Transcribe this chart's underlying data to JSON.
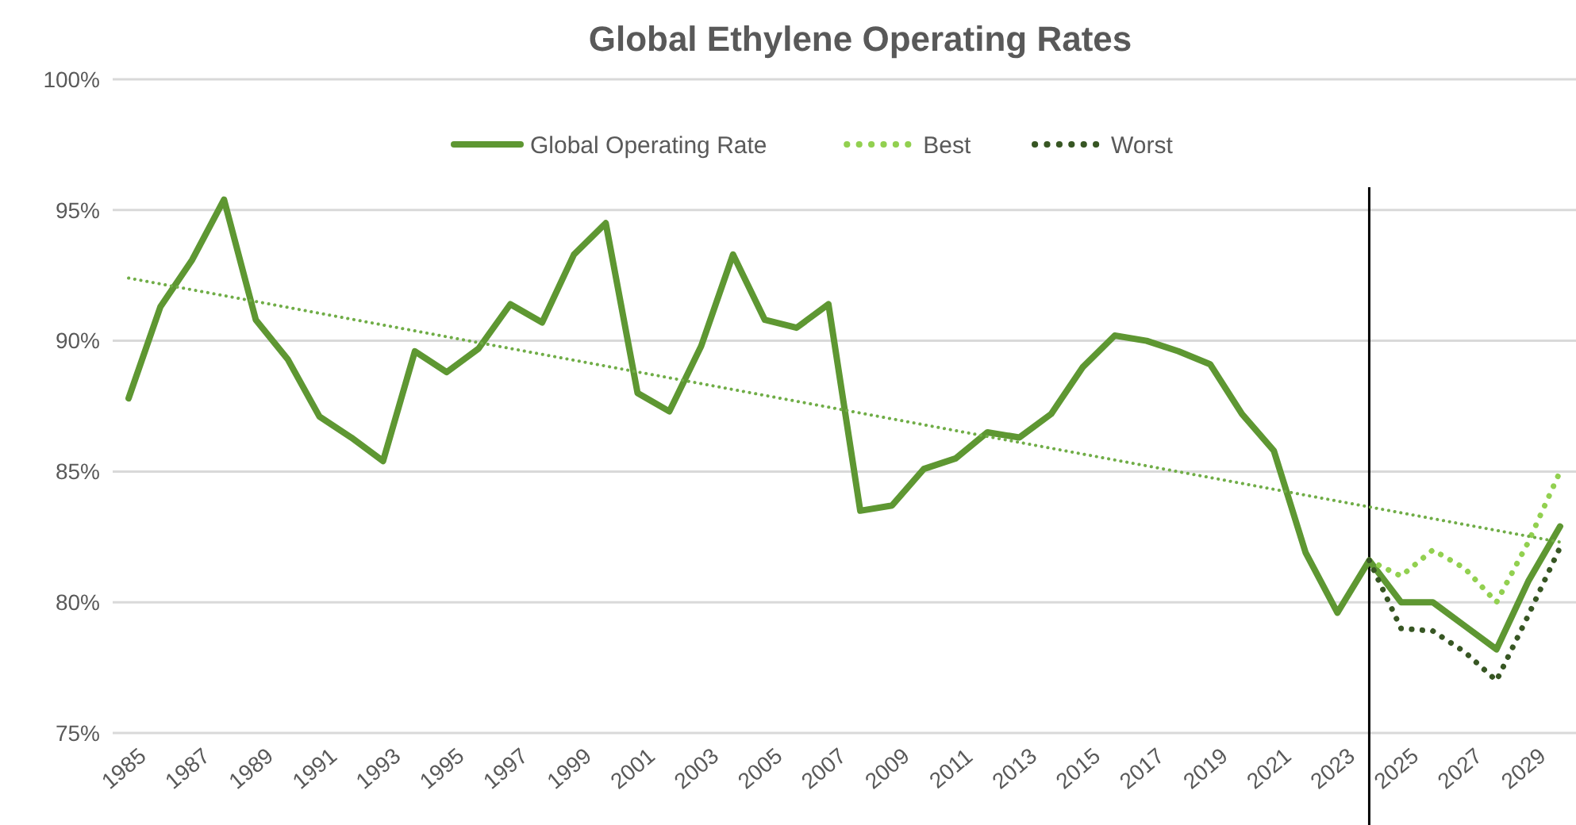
{
  "chart_data": {
    "type": "line",
    "title": "Global Ethylene Operating Rates",
    "x": [
      1985,
      1986,
      1987,
      1988,
      1989,
      1990,
      1991,
      1992,
      1993,
      1994,
      1995,
      1996,
      1997,
      1998,
      1999,
      2000,
      2001,
      2002,
      2003,
      2004,
      2005,
      2006,
      2007,
      2008,
      2009,
      2010,
      2011,
      2012,
      2013,
      2014,
      2015,
      2016,
      2017,
      2018,
      2019,
      2020,
      2021,
      2022,
      2023,
      2024,
      2025,
      2026,
      2027,
      2028,
      2029,
      2030
    ],
    "xlim": [
      1984.5,
      2030.5
    ],
    "xticks": [
      1985,
      1987,
      1989,
      1991,
      1993,
      1995,
      1997,
      1999,
      2001,
      2003,
      2005,
      2007,
      2009,
      2011,
      2013,
      2015,
      2017,
      2019,
      2021,
      2023,
      2025,
      2027,
      2029
    ],
    "ylim": [
      75,
      100
    ],
    "yticks": [
      {
        "value": 75,
        "label": "75%"
      },
      {
        "value": 80,
        "label": "80%"
      },
      {
        "value": 85,
        "label": "85%"
      },
      {
        "value": 90,
        "label": "90%"
      },
      {
        "value": 95,
        "label": "95%"
      },
      {
        "value": 100,
        "label": "100%"
      }
    ],
    "grid": "y",
    "legend": "top",
    "series": [
      {
        "name": "Global Operating Rate",
        "color": "#5e9732",
        "line_style": "solid",
        "values": [
          87.8,
          91.3,
          93.1,
          95.4,
          90.8,
          89.3,
          87.1,
          86.3,
          85.4,
          89.6,
          88.8,
          89.7,
          91.4,
          90.7,
          93.3,
          94.5,
          88.0,
          87.3,
          89.8,
          93.3,
          90.8,
          90.5,
          91.4,
          83.5,
          83.7,
          85.1,
          85.5,
          86.5,
          86.3,
          87.2,
          89.0,
          90.2,
          90.0,
          89.6,
          89.1,
          87.2,
          85.8,
          81.9,
          79.6,
          81.6,
          80.0,
          80.0,
          79.1,
          78.2,
          80.8,
          82.9
        ]
      },
      {
        "name": "Best",
        "color": "#92d050",
        "line_style": "dotted",
        "values": [
          null,
          null,
          null,
          null,
          null,
          null,
          null,
          null,
          null,
          null,
          null,
          null,
          null,
          null,
          null,
          null,
          null,
          null,
          null,
          null,
          null,
          null,
          null,
          null,
          null,
          null,
          null,
          null,
          null,
          null,
          null,
          null,
          null,
          null,
          null,
          null,
          null,
          null,
          null,
          81.6,
          81.0,
          82.0,
          81.3,
          80.0,
          82.3,
          85.0
        ]
      },
      {
        "name": "Worst",
        "color": "#375623",
        "line_style": "dotted",
        "values": [
          null,
          null,
          null,
          null,
          null,
          null,
          null,
          null,
          null,
          null,
          null,
          null,
          null,
          null,
          null,
          null,
          null,
          null,
          null,
          null,
          null,
          null,
          null,
          null,
          null,
          null,
          null,
          null,
          null,
          null,
          null,
          null,
          null,
          null,
          null,
          null,
          null,
          null,
          null,
          81.6,
          79.0,
          78.9,
          78.1,
          77.0,
          79.5,
          82.1
        ]
      },
      {
        "type": "line",
        "color": "#70ad47",
        "line_style": "dotted",
        "x": [
          1985,
          2030
        ],
        "values": [
          92.4,
          82.3
        ]
      }
    ],
    "ref_lines": [
      {
        "axis": "x",
        "value": 2024,
        "color": "#000000",
        "line_style": "solid"
      }
    ]
  }
}
